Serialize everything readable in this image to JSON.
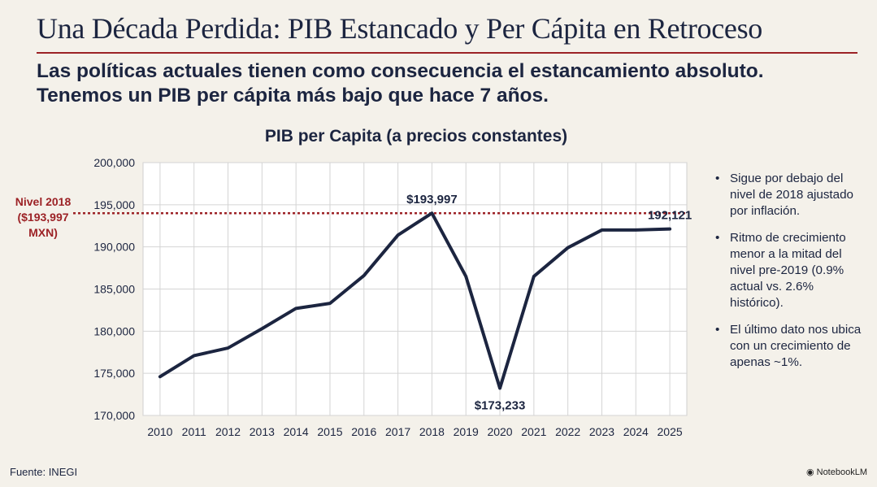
{
  "header": {
    "title": "Una Década Perdida: PIB Estancado y Per Cápita en Retroceso",
    "subtitle_line1": "Las políticas actuales tienen como consecuencia el estancamiento absoluto.",
    "subtitle_line2": "Tenemos un PIB per cápita más bajo que hace 7 años."
  },
  "colors": {
    "line": "#1c2540",
    "reference": "#9c2226",
    "accent": "#9c2226"
  },
  "chart_data": {
    "type": "line",
    "title": "PIB per Capita (a precios constantes)",
    "xlabel": "",
    "ylabel": "",
    "x": [
      "2010",
      "2011",
      "2012",
      "2013",
      "2014",
      "2015",
      "2016",
      "2017",
      "2018",
      "2019",
      "2020",
      "2021",
      "2022",
      "2023",
      "2024",
      "2025"
    ],
    "series": [
      {
        "values": [
          174600,
          177100,
          178000,
          180300,
          182700,
          183300,
          186600,
          191400,
          193997,
          186500,
          173233,
          186500,
          189900,
          192000,
          192000,
          192121
        ]
      }
    ],
    "ylim": [
      170000,
      200000
    ],
    "yticks": [
      170000,
      175000,
      180000,
      185000,
      190000,
      195000,
      200000
    ],
    "ytick_labels": [
      "170,000",
      "175,000",
      "180,000",
      "185,000",
      "190,000",
      "195,000",
      "200,000"
    ],
    "grid": true,
    "reference_line": {
      "value": 193997,
      "label_lines": [
        "Nivel 2018",
        "($193,997",
        "MXN)"
      ]
    },
    "annotations": [
      {
        "x": "2018",
        "y": 193997,
        "text": "$193,997",
        "position": "above"
      },
      {
        "x": "2020",
        "y": 173233,
        "text": "$173,233",
        "position": "below"
      },
      {
        "x": "2025",
        "y": 192121,
        "text": "192,121",
        "position": "above"
      }
    ]
  },
  "notes": {
    "bullet_symbol": "•",
    "items": [
      "Sigue por debajo del nivel de 2018 ajustado por inflación.",
      "Ritmo de crecimiento menor a la mitad del nivel pre-2019 (0.9% actual vs. 2.6% histórico).",
      "El último dato nos ubica con un crecimiento de apenas ~1%."
    ]
  },
  "footer": {
    "source": "Fuente: INEGI",
    "brand": "NotebookLM",
    "brand_icon": "notebooklm-logo-icon"
  }
}
